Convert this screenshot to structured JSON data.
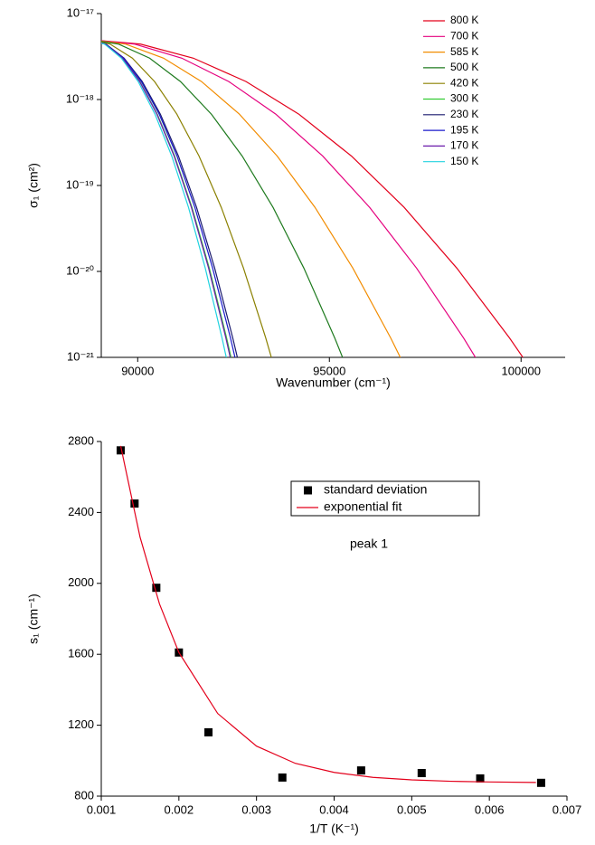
{
  "chart_data": [
    {
      "type": "line",
      "log_y": true,
      "x_label": "Wavenumber (cm⁻¹)",
      "y_label": "σ₁ (cm²)",
      "xlim": [
        89050,
        101150
      ],
      "xticks": [
        90000,
        95000,
        100000
      ],
      "ylim": [
        1e-21,
        1e-17
      ],
      "yticks": [
        {
          "value": 1e-21,
          "label": "10⁻²¹"
        },
        {
          "value": 1e-20,
          "label": "10⁻²⁰"
        },
        {
          "value": 1e-19,
          "label": "10⁻¹⁹"
        },
        {
          "value": 1e-18,
          "label": "10⁻¹⁸"
        },
        {
          "value": 1e-17,
          "label": "10⁻¹⁷"
        }
      ],
      "legend": "upper right",
      "series": [
        {
          "name": "800 K",
          "color": "#e3001b",
          "x": [
            88700,
            90075,
            91450,
            92825,
            94200,
            95575,
            96950,
            98325,
            99700,
            100250
          ],
          "values": [
            5e-18,
            4.41e-18,
            3.03e-18,
            1.62e-18,
            6.77e-19,
            2.2e-19,
            5.56e-20,
            1.09e-20,
            1.68e-21,
            7.38e-22
          ]
        },
        {
          "name": "700 K",
          "color": "#e5007e",
          "x": [
            88700,
            89925,
            91150,
            92375,
            93600,
            94825,
            96050,
            97275,
            98500,
            98990
          ],
          "values": [
            5e-18,
            4.41e-18,
            3.03e-18,
            1.62e-18,
            6.77e-19,
            2.2e-19,
            5.56e-20,
            1.09e-20,
            1.68e-21,
            7.38e-22
          ]
        },
        {
          "name": "585 K",
          "color": "#f28c00",
          "x": [
            88700,
            89688,
            90675,
            91663,
            92650,
            93638,
            94625,
            95613,
            96600,
            96995
          ],
          "values": [
            5e-18,
            4.41e-18,
            3.03e-18,
            1.62e-18,
            6.77e-19,
            2.2e-19,
            5.56e-20,
            1.09e-20,
            1.68e-21,
            7.38e-22
          ]
        },
        {
          "name": "500 K",
          "color": "#1e7a1e",
          "x": [
            88700,
            89505,
            90310,
            91115,
            91920,
            92725,
            93530,
            94335,
            95140,
            95462
          ],
          "values": [
            5e-18,
            4.41e-18,
            3.03e-18,
            1.62e-18,
            6.77e-19,
            2.2e-19,
            5.56e-20,
            1.09e-20,
            1.68e-21,
            7.38e-22
          ]
        },
        {
          "name": "420 K",
          "color": "#8b8000",
          "x": [
            88700,
            89280,
            89860,
            90440,
            91020,
            91600,
            92180,
            92760,
            93340,
            93572
          ],
          "values": [
            5e-18,
            4.41e-18,
            3.03e-18,
            1.62e-18,
            6.77e-19,
            2.2e-19,
            5.56e-20,
            1.09e-20,
            1.68e-21,
            7.38e-22
          ]
        },
        {
          "name": "300 K",
          "color": "#33cc33",
          "x": [
            88700,
            89153,
            89605,
            90058,
            90510,
            90963,
            91415,
            91868,
            92320,
            92501
          ],
          "values": [
            5e-18,
            4.41e-18,
            3.03e-18,
            1.62e-18,
            6.77e-19,
            2.2e-19,
            5.56e-20,
            1.09e-20,
            1.68e-21,
            7.38e-22
          ]
        },
        {
          "name": "230 K",
          "color": "#1a1a6e",
          "x": [
            88700,
            89173,
            89645,
            90118,
            90590,
            91063,
            91535,
            92008,
            92480,
            92669
          ],
          "values": [
            5e-18,
            4.41e-18,
            3.03e-18,
            1.62e-18,
            6.77e-19,
            2.2e-19,
            5.56e-20,
            1.09e-20,
            1.68e-21,
            7.38e-22
          ]
        },
        {
          "name": "195 K",
          "color": "#1a1acc",
          "x": [
            88700,
            89165,
            89630,
            90095,
            90560,
            91025,
            91490,
            91955,
            92420,
            92606
          ],
          "values": [
            5e-18,
            4.41e-18,
            3.03e-18,
            1.62e-18,
            6.77e-19,
            2.2e-19,
            5.56e-20,
            1.09e-20,
            1.68e-21,
            7.38e-22
          ]
        },
        {
          "name": "170 K",
          "color": "#6a1aaa",
          "x": [
            88700,
            89150,
            89600,
            90050,
            90500,
            90950,
            91400,
            91850,
            92300,
            92480
          ],
          "values": [
            5e-18,
            4.41e-18,
            3.03e-18,
            1.62e-18,
            6.77e-19,
            2.2e-19,
            5.56e-20,
            1.09e-20,
            1.68e-21,
            7.38e-22
          ]
        },
        {
          "name": "150 K",
          "color": "#22d3e0",
          "x": [
            88700,
            89138,
            89575,
            90013,
            90450,
            90888,
            91325,
            91763,
            92200,
            92375
          ],
          "values": [
            5e-18,
            4.41e-18,
            3.03e-18,
            1.62e-18,
            6.77e-19,
            2.2e-19,
            5.56e-20,
            1.09e-20,
            1.68e-21,
            7.38e-22
          ]
        }
      ]
    },
    {
      "type": "scatter",
      "x_label": "1/T (K⁻¹)",
      "y_label": "s₁ (cm⁻¹)",
      "xlim": [
        0.001,
        0.007
      ],
      "xticks": [
        0.001,
        0.002,
        0.003,
        0.004,
        0.005,
        0.006,
        0.007
      ],
      "ylim": [
        800,
        2800
      ],
      "yticks": [
        800,
        1200,
        1600,
        2000,
        2400,
        2800
      ],
      "legend": "upper center",
      "legend_frame": true,
      "annotation": "peak 1",
      "series": [
        {
          "name": "standard deviation",
          "type": "scatter",
          "color": "#000000",
          "x": [
            0.00125,
            0.001429,
            0.001709,
            0.002,
            0.002381,
            0.003333,
            0.004348,
            0.005128,
            0.005882,
            0.006667
          ],
          "values": [
            2750,
            2450,
            1975,
            1610,
            1160,
            905,
            945,
            930,
            900,
            875
          ]
        },
        {
          "name": "exponential fit",
          "type": "line",
          "color": "#e3001b",
          "x": [
            0.00125,
            0.0015,
            0.00175,
            0.002,
            0.0025,
            0.003,
            0.0035,
            0.004,
            0.0045,
            0.005,
            0.0055,
            0.006,
            0.0066
          ],
          "values": [
            2775,
            2260,
            1884,
            1610,
            1266,
            1082,
            985,
            934,
            906,
            892,
            884,
            880,
            877
          ]
        }
      ]
    }
  ]
}
